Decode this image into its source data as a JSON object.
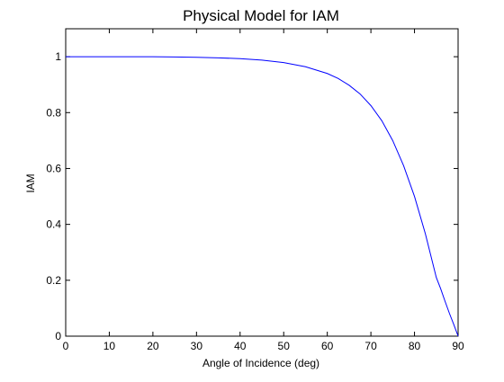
{
  "chart_data": {
    "type": "line",
    "title": "Physical Model for IAM",
    "xlabel": "Angle of Incidence (deg)",
    "ylabel": "IAM",
    "xlim": [
      0,
      90
    ],
    "ylim": [
      0,
      1.1
    ],
    "xticks": [
      0,
      10,
      20,
      30,
      40,
      50,
      60,
      70,
      80,
      90
    ],
    "yticks": [
      0,
      0.2,
      0.4,
      0.6,
      0.8,
      1
    ],
    "xtick_labels": [
      "0",
      "10",
      "20",
      "30",
      "40",
      "50",
      "60",
      "70",
      "80",
      "90"
    ],
    "ytick_labels": [
      "0",
      "0.2",
      "0.4",
      "0.6",
      "0.8",
      "1"
    ],
    "grid": false,
    "series": [
      {
        "color": "#0000ff",
        "x": [
          0,
          5,
          10,
          15,
          20,
          25,
          30,
          35,
          40,
          45,
          50,
          55,
          60,
          62.5,
          65,
          67.5,
          70,
          72.5,
          75,
          77.5,
          80,
          82.5,
          85,
          86,
          87,
          88,
          89,
          90
        ],
        "y": [
          1.0,
          1.0,
          1.0,
          1.0,
          1.0,
          0.999,
          0.998,
          0.996,
          0.993,
          0.988,
          0.979,
          0.964,
          0.94,
          0.922,
          0.898,
          0.867,
          0.825,
          0.771,
          0.7,
          0.61,
          0.5,
          0.366,
          0.21,
          0.17,
          0.125,
          0.082,
          0.042,
          0.0
        ]
      }
    ]
  }
}
